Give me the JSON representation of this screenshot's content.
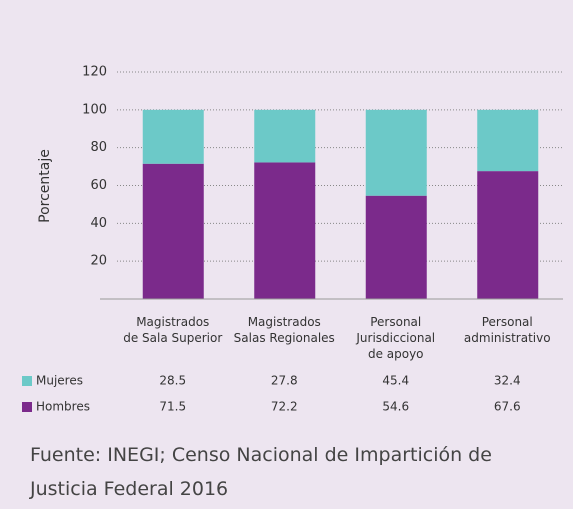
{
  "chart_data": {
    "type": "stacked_bar",
    "y_label": "Porcentaje",
    "categories": [
      [
        "Magistrados",
        "de Sala Superior"
      ],
      [
        "Magistrados",
        "Salas Regionales"
      ],
      [
        "Personal",
        "Jurisdiccional",
        "de apoyo"
      ],
      [
        "Personal",
        "administrativo"
      ]
    ],
    "series": [
      {
        "name": "Hombres",
        "color": "#7b2a8b",
        "values": [
          71.5,
          72.2,
          54.6,
          67.6
        ]
      },
      {
        "name": "Mujeres",
        "color": "#6cc9c8",
        "values": [
          28.5,
          27.8,
          45.4,
          32.4
        ]
      }
    ],
    "ylim": [
      0,
      120
    ],
    "yticks": [
      20,
      40,
      60,
      80,
      100,
      120
    ],
    "grid": true,
    "source": "Fuente: INEGI; Censo Nacional de Impartición de Justicia Federal 2016"
  }
}
